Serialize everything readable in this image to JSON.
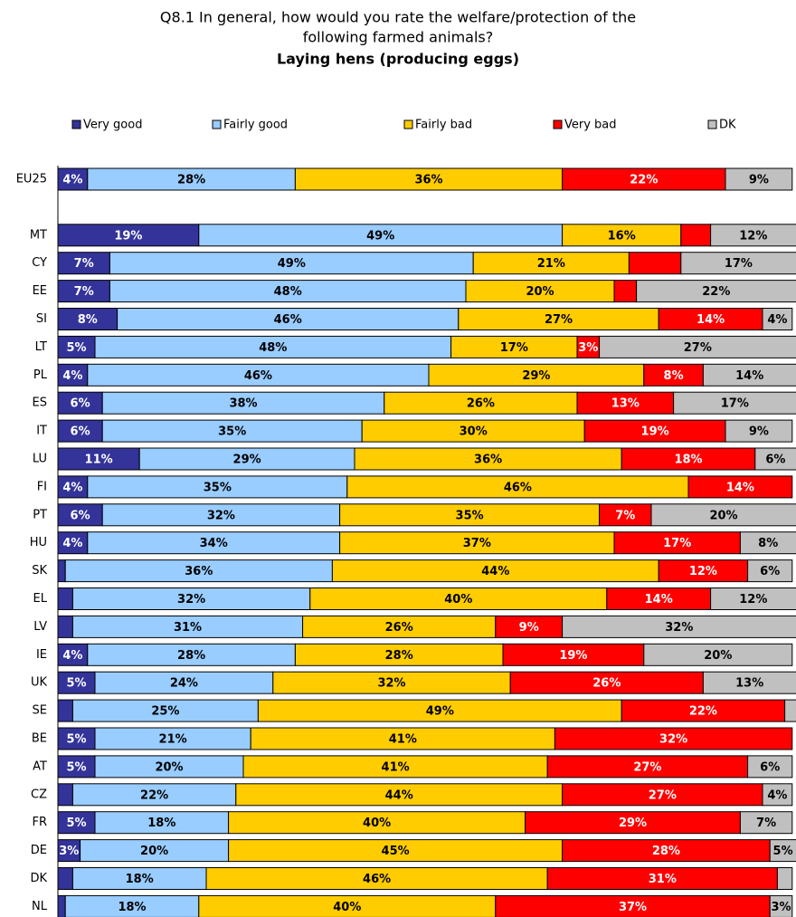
{
  "chart_data": {
    "type": "stacked-bar-horizontal",
    "title": [
      "Q8.1 In general, how would you rate the welfare/protection of the",
      "following farmed animals?"
    ],
    "subtitle": "Laying hens (producing eggs)",
    "xlim": [
      0,
      100
    ],
    "legend": "top",
    "categories": [
      "EU25",
      null,
      "MT",
      "CY",
      "EE",
      "SI",
      "LT",
      "PL",
      "ES",
      "IT",
      "LU",
      "FI",
      "PT",
      "HU",
      "SK",
      "EL",
      "LV",
      "IE",
      "UK",
      "SE",
      "BE",
      "AT",
      "CZ",
      "FR",
      "DE",
      "DK",
      "NL"
    ],
    "series": [
      {
        "name": "Very good",
        "color": "#333399",
        "values": [
          4,
          null,
          19,
          7,
          7,
          8,
          5,
          4,
          6,
          6,
          11,
          4,
          6,
          4,
          1,
          2,
          2,
          4,
          5,
          2,
          5,
          5,
          2,
          5,
          3,
          2,
          1
        ],
        "value_labels": [
          "4%",
          null,
          "19%",
          "7%",
          "7%",
          "8%",
          "5%",
          "4%",
          "6%",
          "6%",
          "11%",
          "4%",
          "6%",
          "4%",
          null,
          null,
          null,
          "4%",
          "5%",
          null,
          "5%",
          "5%",
          null,
          "5%",
          "3%",
          null,
          null
        ]
      },
      {
        "name": "Fairly good",
        "color": "#99ccff",
        "values": [
          28,
          null,
          49,
          49,
          48,
          46,
          48,
          46,
          38,
          35,
          29,
          35,
          32,
          34,
          36,
          32,
          31,
          28,
          24,
          25,
          21,
          20,
          22,
          18,
          20,
          18,
          18
        ],
        "value_labels": [
          "28%",
          null,
          "49%",
          "49%",
          "48%",
          "46%",
          "48%",
          "46%",
          "38%",
          "35%",
          "29%",
          "35%",
          "32%",
          "34%",
          "36%",
          "32%",
          "31%",
          "28%",
          "24%",
          "25%",
          "21%",
          "20%",
          "22%",
          "18%",
          "20%",
          "18%",
          "18%"
        ]
      },
      {
        "name": "Fairly bad",
        "color": "#ffcc00",
        "values": [
          36,
          null,
          16,
          21,
          20,
          27,
          17,
          29,
          26,
          30,
          36,
          46,
          35,
          37,
          44,
          40,
          26,
          28,
          32,
          49,
          41,
          41,
          44,
          40,
          45,
          46,
          40
        ],
        "value_labels": [
          "36%",
          null,
          "16%",
          "21%",
          "20%",
          "27%",
          "17%",
          "29%",
          "26%",
          "30%",
          "36%",
          "46%",
          "35%",
          "37%",
          "44%",
          "40%",
          "26%",
          "28%",
          "32%",
          "49%",
          "41%",
          "41%",
          "44%",
          "40%",
          "45%",
          "46%",
          "40%"
        ]
      },
      {
        "name": "Very bad",
        "color": "#ff0000",
        "values": [
          22,
          null,
          4,
          7,
          3,
          14,
          3,
          8,
          13,
          19,
          18,
          14,
          7,
          17,
          12,
          14,
          9,
          19,
          26,
          22,
          32,
          27,
          27,
          29,
          28,
          31,
          37
        ],
        "value_labels": [
          "22%",
          null,
          null,
          null,
          null,
          "14%",
          "3%",
          "8%",
          "13%",
          "19%",
          "18%",
          "14%",
          "7%",
          "17%",
          "12%",
          "14%",
          "9%",
          "19%",
          "26%",
          "22%",
          "32%",
          "27%",
          "27%",
          "29%",
          "28%",
          "31%",
          "37%"
        ]
      },
      {
        "name": "DK",
        "color": "#c0c0c0",
        "values": [
          9,
          null,
          12,
          17,
          22,
          4,
          27,
          14,
          17,
          9,
          6,
          0,
          20,
          8,
          6,
          12,
          32,
          20,
          13,
          2,
          0,
          6,
          4,
          7,
          5,
          2,
          3
        ],
        "value_labels": [
          "9%",
          null,
          "12%",
          "17%",
          "22%",
          "4%",
          "27%",
          "14%",
          "17%",
          "9%",
          "6%",
          null,
          "20%",
          "8%",
          "6%",
          "12%",
          "32%",
          "20%",
          "13%",
          null,
          null,
          "6%",
          "4%",
          "7%",
          "5%",
          null,
          "3%"
        ]
      }
    ]
  }
}
